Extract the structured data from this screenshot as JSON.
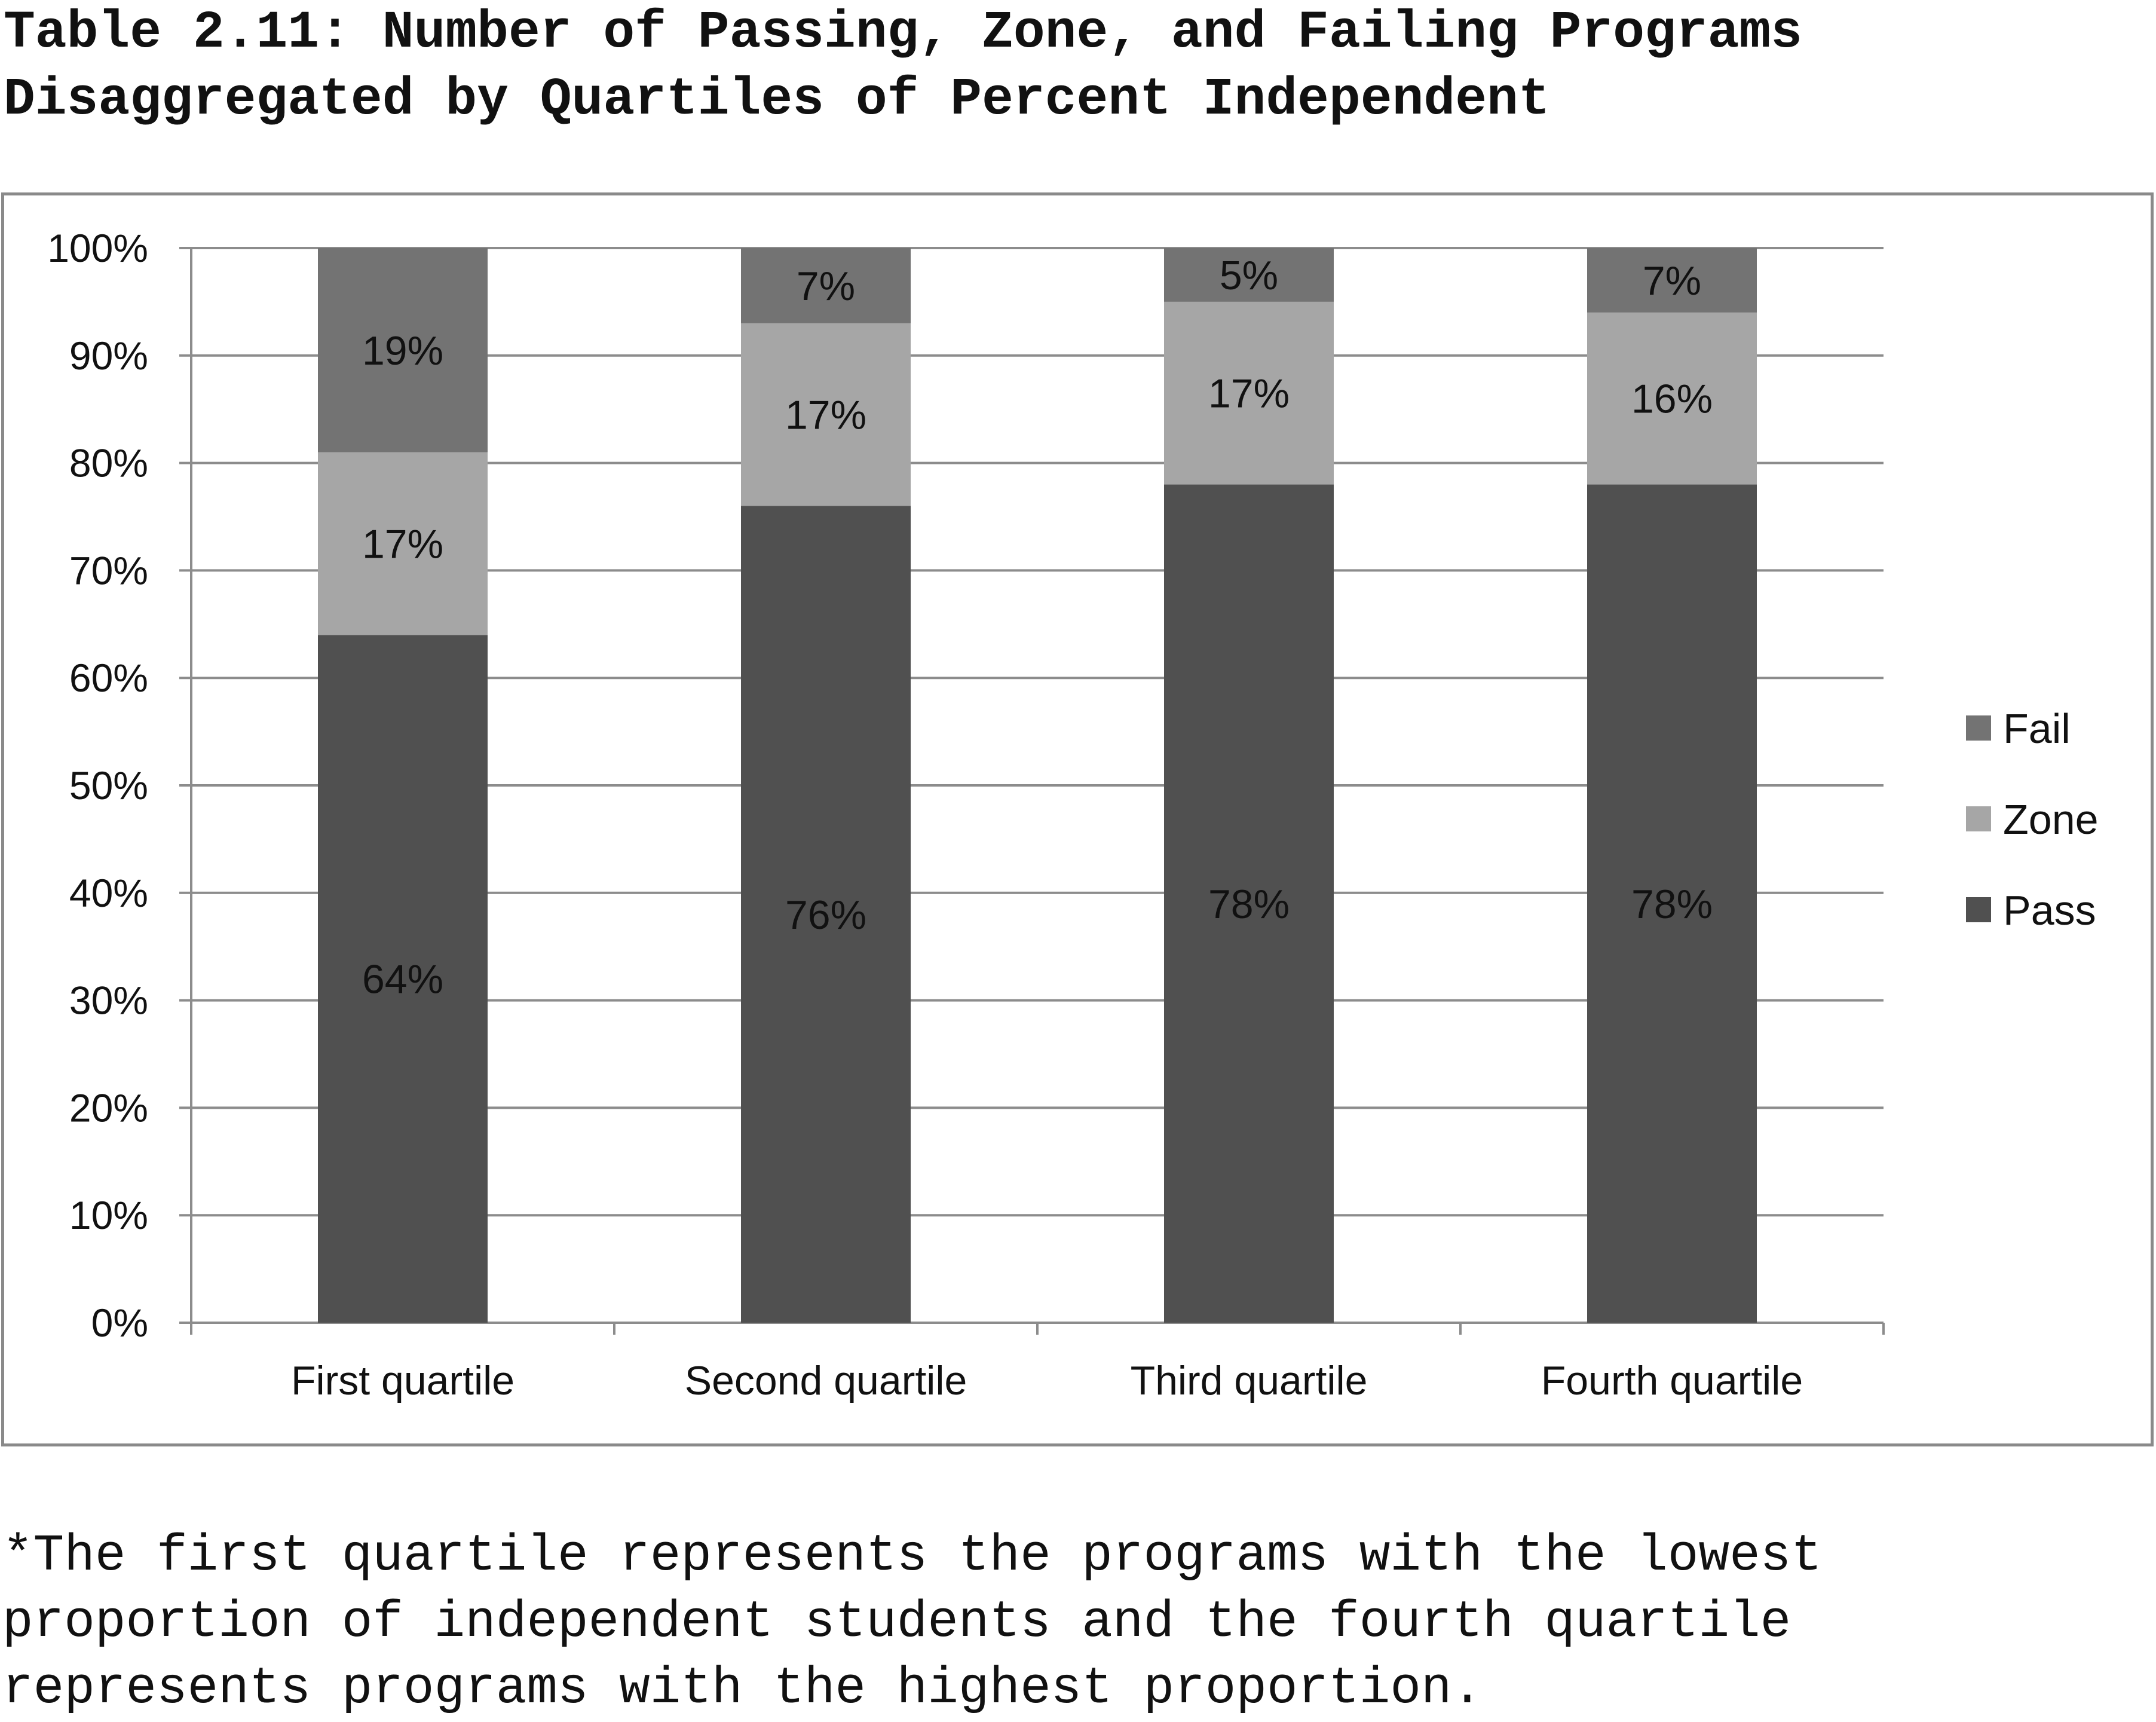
{
  "page": {
    "title_line1": "Table 2.11: Number of Passing, Zone, and Failing Programs",
    "title_line2": "Disaggregated by Quartiles of Percent Independent",
    "footnote_line1": "*The first quartile represents the programs with the lowest",
    "footnote_line2": "proportion of independent students and the fourth quartile",
    "footnote_line3": "represents programs with the highest proportion."
  },
  "chart_data": {
    "type": "bar",
    "stacked": true,
    "percent": true,
    "categories": [
      "First quartile",
      "Second quartile",
      "Third quartile",
      "Fourth quartile"
    ],
    "series": [
      {
        "name": "Pass",
        "values": [
          64,
          76,
          78,
          78
        ],
        "labels": [
          "64%",
          "76%",
          "78%",
          "78%"
        ],
        "color": "#505050"
      },
      {
        "name": "Zone",
        "values": [
          17,
          17,
          17,
          16
        ],
        "labels": [
          "17%",
          "17%",
          "17%",
          "16%"
        ],
        "color": "#a6a6a6"
      },
      {
        "name": "Fail",
        "values": [
          19,
          7,
          5,
          7
        ],
        "labels": [
          "19%",
          "7%",
          "5%",
          "7%"
        ],
        "color": "#737373"
      }
    ],
    "ylim": [
      0,
      100
    ],
    "yticks": [
      0,
      10,
      20,
      30,
      40,
      50,
      60,
      70,
      80,
      90,
      100
    ],
    "ytick_labels": [
      "0%",
      "10%",
      "20%",
      "30%",
      "40%",
      "50%",
      "60%",
      "70%",
      "80%",
      "90%",
      "100%"
    ],
    "grid": true,
    "legend": {
      "position": "right",
      "order": [
        "Fail",
        "Zone",
        "Pass"
      ]
    },
    "title": "",
    "xlabel": "",
    "ylabel": ""
  }
}
